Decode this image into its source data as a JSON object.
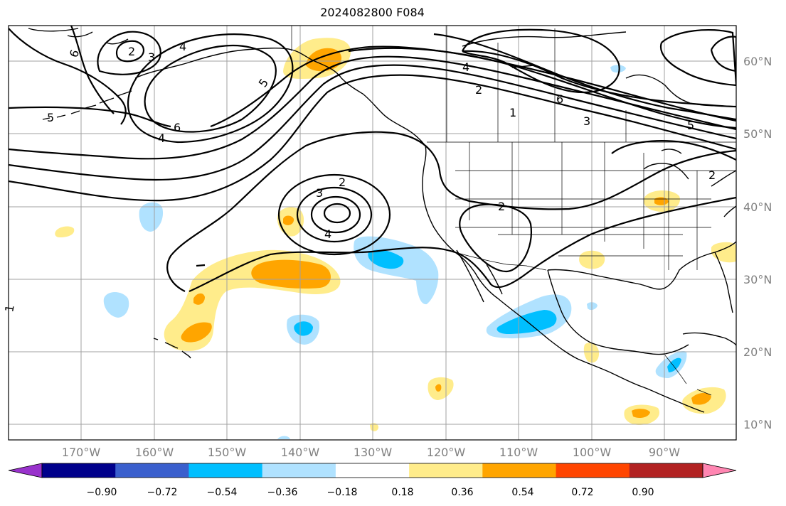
{
  "title": "2024082800 F084",
  "lon_labels": [
    "170°W",
    "160°W",
    "150°W",
    "140°W",
    "130°W",
    "120°W",
    "110°W",
    "100°W",
    "90°W"
  ],
  "lat_labels": [
    "60°N",
    "50°N",
    "40°N",
    "30°N",
    "20°N",
    "10°N"
  ],
  "colorbar": {
    "colors": [
      "#9932cc",
      "#00008b",
      "#3a5fcd",
      "#00bfff",
      "#b0e2ff",
      "#ffffff",
      "#ffec8b",
      "#ffa500",
      "#ff4500",
      "#b22222",
      "#ff86b2"
    ],
    "tick_labels": [
      "−0.90",
      "−0.72",
      "−0.54",
      "−0.36",
      "−0.18",
      "0.18",
      "0.36",
      "0.54",
      "0.72",
      "0.90"
    ]
  },
  "contour_labels": [
    "6",
    "2",
    "3",
    "4",
    "5",
    "6",
    "4",
    "5",
    "2",
    "3",
    "4",
    "2",
    "4",
    "2",
    "1",
    "6",
    "3",
    "5",
    "2",
    "1"
  ],
  "colors": {
    "yellow": "#ffec8b",
    "orange": "#ffa500",
    "light_blue": "#b0e2ff",
    "blue": "#00bfff",
    "grid": "#a0a0a0",
    "label_gray": "#808080"
  }
}
